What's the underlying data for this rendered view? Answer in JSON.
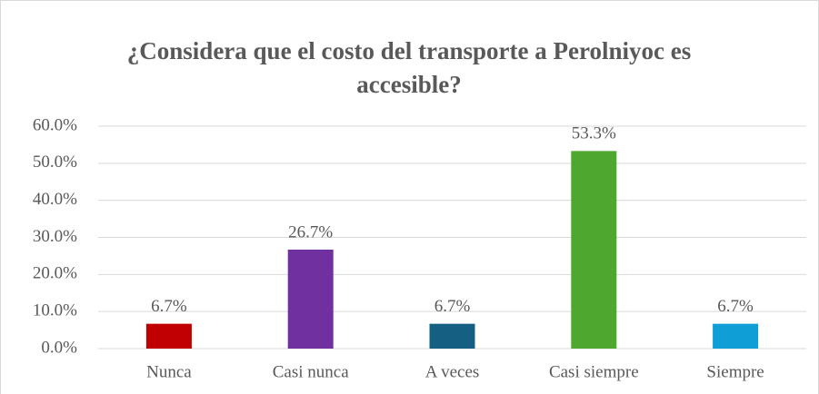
{
  "chart_data": {
    "type": "bar",
    "title": "¿Considera que el costo del transporte a Perolniyoc es accesible?",
    "categories": [
      "Nunca",
      "Casi nunca",
      "A veces",
      "Casi siempre",
      "Siempre"
    ],
    "values": [
      6.7,
      26.7,
      6.7,
      53.3,
      6.7
    ],
    "value_labels": [
      "6.7%",
      "26.7%",
      "6.7%",
      "53.3%",
      "6.7%"
    ],
    "colors": [
      "#c00000",
      "#7030a0",
      "#156082",
      "#4ea72e",
      "#0f9ed5"
    ],
    "ylim": [
      0,
      60
    ],
    "yticks": [
      {
        "value": 0,
        "label": "0.0%"
      },
      {
        "value": 10,
        "label": "10.0%"
      },
      {
        "value": 20,
        "label": "20.0%"
      },
      {
        "value": 30,
        "label": "30.0%"
      },
      {
        "value": 40,
        "label": "40.0%"
      },
      {
        "value": 50,
        "label": "50.0%"
      },
      {
        "value": 60,
        "label": "60.0%"
      }
    ],
    "grid": true
  }
}
